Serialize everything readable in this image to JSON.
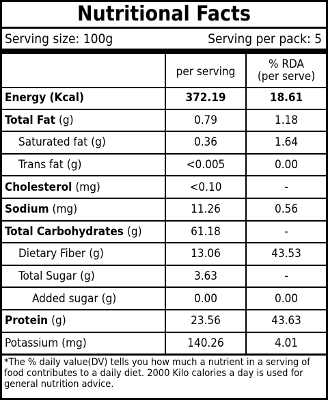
{
  "title": "Nutritional Facts",
  "serving_size": "Serving size: 100g",
  "serving_per_pack": "Serving per pack: 5",
  "columns": {
    "per_serving": "per serving",
    "rda": [
      "% RDA",
      "(per serve)"
    ]
  },
  "rows": [
    {
      "name": "Energy (Kcal)",
      "unit": null,
      "bold": true,
      "indent": 0,
      "per_serving": "372.19",
      "rda": "18.61",
      "bold_values": true
    },
    {
      "name": "Total Fat",
      "unit": "(g)",
      "bold": true,
      "indent": 0,
      "per_serving": "0.79",
      "rda": "1.18"
    },
    {
      "name": "Saturated fat",
      "unit": "(g)",
      "bold": false,
      "indent": 1,
      "per_serving": "0.36",
      "rda": "1.64"
    },
    {
      "name": "Trans fat",
      "unit": "(g)",
      "bold": false,
      "indent": 1,
      "per_serving": "<0.005",
      "rda": "0.00"
    },
    {
      "name": "Cholesterol",
      "unit": "(mg)",
      "bold": true,
      "indent": 0,
      "per_serving": "<0.10",
      "rda": "-"
    },
    {
      "name": "Sodium",
      "unit": "(mg)",
      "bold": true,
      "indent": 0,
      "per_serving": "11.26",
      "rda": "0.56"
    },
    {
      "name": "Total Carbohydrates",
      "unit": "(g)",
      "bold": true,
      "indent": 0,
      "per_serving": "61.18",
      "rda": "-"
    },
    {
      "name": "Dietary Fiber",
      "unit": "(g)",
      "bold": false,
      "indent": 1,
      "per_serving": "13.06",
      "rda": "43.53"
    },
    {
      "name": "Total Sugar",
      "unit": "(g)",
      "bold": false,
      "indent": 1,
      "per_serving": "3.63",
      "rda": "-"
    },
    {
      "name": "Added sugar",
      "unit": "(g)",
      "bold": false,
      "indent": 2,
      "per_serving": "0.00",
      "rda": "0.00"
    },
    {
      "name": "Protein",
      "unit": "(g)",
      "bold": true,
      "indent": 0,
      "per_serving": "23.56",
      "rda": "43.63"
    },
    {
      "name": "Potassium",
      "unit": "(mg)",
      "bold": false,
      "indent": 0,
      "per_serving": "140.26",
      "rda": "4.01"
    }
  ],
  "footnote": "*The % daily value(DV) tells you how much a nutrient in a serving of food contributes to a daily diet. 2000 Kilo calories a day is used for general nutrition advice."
}
